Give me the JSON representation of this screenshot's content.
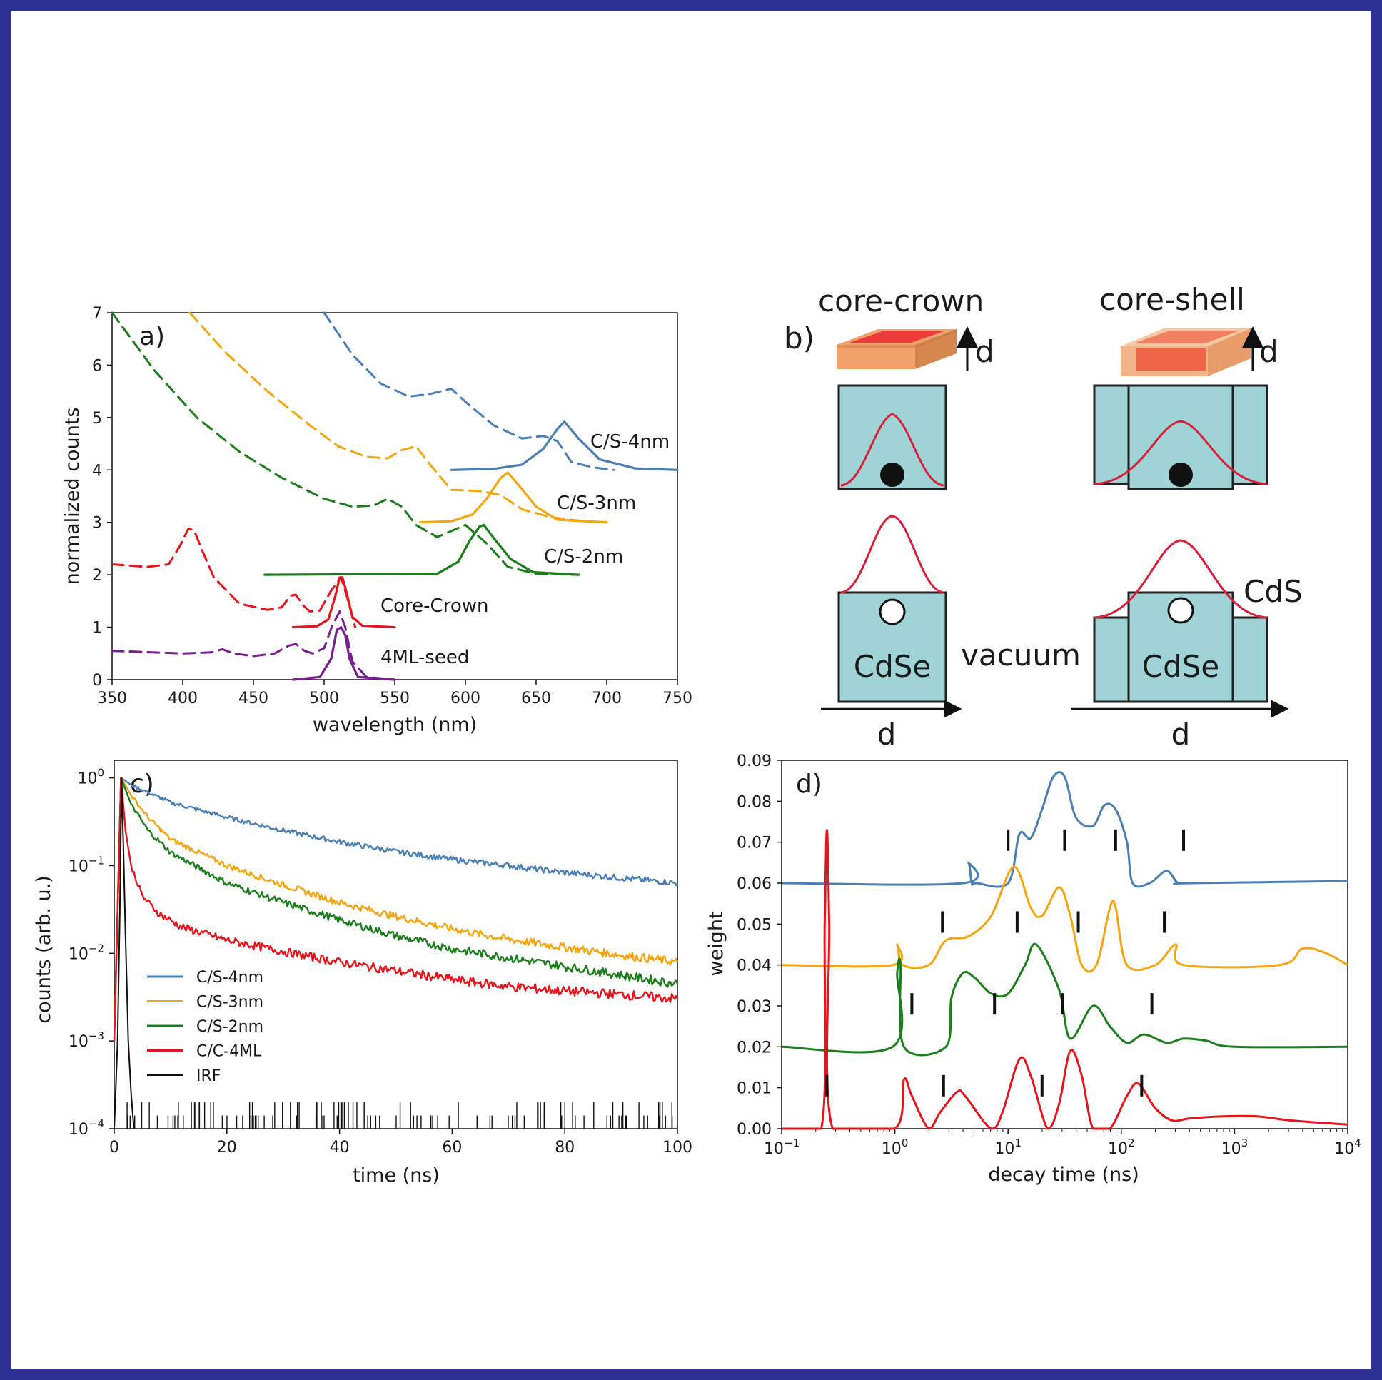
{
  "colors": {
    "frame": "#2e3192",
    "blue": "#4a7fb5",
    "orange": "#f4a50f",
    "green": "#1a7f1a",
    "red": "#e8141b",
    "purple": "#7a1f8f",
    "black": "#111111",
    "cdse": "#9fd3d6",
    "wave": "#d8203a",
    "chip_top": "#ec3b3b",
    "chip_rim": "#f0a26a"
  },
  "chart_data": [
    {
      "id": "a",
      "type": "line",
      "panel_label": "a)",
      "xlabel": "wavelength (nm)",
      "ylabel": "normalized counts",
      "xlim": [
        350,
        750
      ],
      "ylim": [
        0,
        7
      ],
      "xticks": [
        "350",
        "400",
        "450",
        "500",
        "550",
        "600",
        "650",
        "700",
        "750"
      ],
      "yticks": [
        "0",
        "1",
        "2",
        "3",
        "4",
        "5",
        "6",
        "7"
      ],
      "series": [
        {
          "name": "C/S-4nm",
          "color": "blue",
          "kind": "abs",
          "x": [
            500,
            520,
            540,
            560,
            575,
            590,
            600,
            620,
            640,
            655,
            665,
            675,
            690,
            705
          ],
          "y": [
            7.0,
            6.2,
            5.65,
            5.4,
            5.45,
            5.55,
            5.3,
            4.85,
            4.6,
            4.65,
            4.55,
            4.15,
            4.05,
            4.0
          ]
        },
        {
          "name": "C/S-4nm",
          "color": "blue",
          "kind": "pl",
          "label": "C/S-4nm",
          "x": [
            590,
            620,
            640,
            655,
            665,
            670,
            680,
            695,
            720,
            750
          ],
          "y": [
            4.0,
            4.02,
            4.1,
            4.4,
            4.78,
            4.92,
            4.6,
            4.2,
            4.03,
            4.0
          ]
        },
        {
          "name": "C/S-3nm",
          "color": "orange",
          "kind": "abs",
          "x": [
            405,
            430,
            460,
            490,
            510,
            530,
            545,
            555,
            565,
            575,
            590,
            610,
            625,
            640,
            660,
            690
          ],
          "y": [
            7.0,
            6.25,
            5.5,
            4.85,
            4.45,
            4.25,
            4.22,
            4.38,
            4.45,
            4.1,
            3.62,
            3.6,
            3.52,
            3.25,
            3.1,
            3.0
          ]
        },
        {
          "name": "C/S-3nm",
          "color": "orange",
          "kind": "pl",
          "label": "C/S-3nm",
          "x": [
            568,
            590,
            605,
            615,
            625,
            630,
            638,
            650,
            665,
            700
          ],
          "y": [
            3.0,
            3.02,
            3.15,
            3.45,
            3.85,
            3.95,
            3.7,
            3.3,
            3.05,
            3.0
          ]
        },
        {
          "name": "C/S-2nm",
          "color": "green",
          "kind": "abs",
          "x": [
            350,
            380,
            410,
            440,
            470,
            500,
            520,
            535,
            545,
            555,
            565,
            580,
            600,
            615,
            630,
            650,
            680
          ],
          "y": [
            7.0,
            5.9,
            5.0,
            4.35,
            3.85,
            3.45,
            3.3,
            3.32,
            3.45,
            3.3,
            2.95,
            2.72,
            2.95,
            2.6,
            2.15,
            2.02,
            2.0
          ]
        },
        {
          "name": "C/S-2nm",
          "color": "green",
          "kind": "pl",
          "label": "C/S-2nm",
          "x": [
            458,
            580,
            595,
            603,
            610,
            613,
            620,
            632,
            648,
            680
          ],
          "y": [
            2.0,
            2.02,
            2.25,
            2.65,
            2.92,
            2.95,
            2.7,
            2.3,
            2.05,
            2.0
          ]
        },
        {
          "name": "Core-Crown",
          "color": "red",
          "kind": "abs",
          "x": [
            350,
            375,
            390,
            398,
            404,
            408,
            414,
            422,
            440,
            460,
            470,
            476,
            480,
            485,
            490,
            497,
            505,
            512,
            516,
            522
          ],
          "y": [
            2.2,
            2.15,
            2.2,
            2.55,
            2.88,
            2.85,
            2.45,
            1.95,
            1.45,
            1.33,
            1.38,
            1.6,
            1.62,
            1.42,
            1.3,
            1.32,
            1.7,
            1.95,
            1.6,
            1.0
          ]
        },
        {
          "name": "Core-Crown",
          "color": "red",
          "kind": "pl",
          "label": "Core-Crown",
          "x": [
            478,
            495,
            503,
            508,
            511,
            513,
            516,
            520,
            527,
            550
          ],
          "y": [
            1.0,
            1.02,
            1.15,
            1.6,
            1.95,
            1.95,
            1.65,
            1.2,
            1.03,
            1.0
          ]
        },
        {
          "name": "4ML-seed",
          "color": "purple",
          "kind": "abs",
          "x": [
            350,
            400,
            420,
            428,
            436,
            450,
            465,
            475,
            480,
            486,
            492,
            500,
            506,
            511,
            515,
            520,
            530,
            550
          ],
          "y": [
            0.55,
            0.5,
            0.52,
            0.58,
            0.5,
            0.45,
            0.5,
            0.65,
            0.68,
            0.55,
            0.5,
            0.6,
            1.05,
            1.3,
            1.0,
            0.35,
            0.05,
            0.0
          ]
        },
        {
          "name": "4ML-seed",
          "color": "purple",
          "kind": "pl",
          "label": "4ML-seed",
          "x": [
            478,
            497,
            505,
            509,
            512,
            515,
            518,
            524,
            550
          ],
          "y": [
            0.0,
            0.05,
            0.4,
            0.95,
            1.0,
            0.85,
            0.4,
            0.05,
            0.0
          ]
        }
      ]
    },
    {
      "id": "c",
      "type": "line",
      "panel_label": "c)",
      "xlabel": "time (ns)",
      "ylabel": "counts (arb. u.)",
      "xlim": [
        0,
        100
      ],
      "ylim_log10": [
        -4,
        0.2
      ],
      "xticks": [
        "0",
        "20",
        "40",
        "60",
        "80",
        "100"
      ],
      "ytick_powers": [
        -4,
        -3,
        -2,
        -1,
        0
      ],
      "legend_position": "lower-left",
      "legend": [
        "C/S-4nm",
        "C/S-3nm",
        "C/S-2nm",
        "C/C-4ML",
        "IRF"
      ],
      "series": [
        {
          "name": "C/S-4nm",
          "color": "blue",
          "t": [
            0,
            1.2,
            3,
            10,
            20,
            30,
            40,
            50,
            60,
            70,
            80,
            90,
            100
          ],
          "log10": [
            -3,
            0,
            -0.08,
            -0.28,
            -0.45,
            -0.6,
            -0.73,
            -0.84,
            -0.93,
            -1.0,
            -1.08,
            -1.14,
            -1.2
          ]
        },
        {
          "name": "C/S-3nm",
          "color": "orange",
          "t": [
            0,
            1.2,
            3,
            6,
            10,
            20,
            30,
            40,
            50,
            60,
            70,
            80,
            90,
            100
          ],
          "log10": [
            -3,
            0,
            -0.2,
            -0.45,
            -0.7,
            -1.0,
            -1.22,
            -1.42,
            -1.58,
            -1.72,
            -1.84,
            -1.93,
            -2.02,
            -2.1
          ]
        },
        {
          "name": "C/S-2nm",
          "color": "green",
          "t": [
            0,
            1.2,
            3,
            6,
            10,
            20,
            30,
            40,
            50,
            60,
            70,
            80,
            90,
            100
          ],
          "log10": [
            -3,
            0,
            -0.3,
            -0.6,
            -0.85,
            -1.2,
            -1.42,
            -1.62,
            -1.8,
            -1.95,
            -2.05,
            -2.15,
            -2.25,
            -2.35
          ]
        },
        {
          "name": "C/C-4ML",
          "color": "red",
          "t": [
            0,
            1.2,
            2,
            3,
            5,
            8,
            12,
            20,
            30,
            40,
            50,
            60,
            70,
            80,
            90,
            100
          ],
          "log10": [
            -3,
            0,
            -0.6,
            -1.0,
            -1.35,
            -1.55,
            -1.7,
            -1.85,
            -1.98,
            -2.1,
            -2.2,
            -2.3,
            -2.38,
            -2.43,
            -2.47,
            -2.52
          ]
        },
        {
          "name": "IRF",
          "color": "black",
          "t": [
            0,
            0.6,
            1.0,
            1.3,
            1.6,
            2.0,
            2.5,
            3.0,
            3.5
          ],
          "log10": [
            -4,
            -3,
            -1.5,
            0,
            -0.7,
            -1.8,
            -3,
            -3.6,
            -4
          ]
        }
      ]
    },
    {
      "id": "d",
      "type": "line",
      "panel_label": "d)",
      "xlabel": "decay time (ns)",
      "ylabel": "weight",
      "xlim_log10": [
        -1,
        4
      ],
      "ylim": [
        0,
        0.09
      ],
      "yticks": [
        "0.00",
        "0.01",
        "0.02",
        "0.03",
        "0.04",
        "0.05",
        "0.06",
        "0.07",
        "0.08",
        "0.09"
      ],
      "xtick_powers": [
        -1,
        0,
        1,
        2,
        3,
        4
      ],
      "series": [
        {
          "name": "C/S-4nm",
          "color": "blue",
          "log10t": [
            -1,
            0.6,
            0.65,
            0.68,
            0.72,
            1.0,
            1.1,
            1.2,
            1.3,
            1.4,
            1.5,
            1.6,
            1.75,
            1.85,
            1.95,
            2.05,
            2.1,
            2.25,
            2.4,
            2.5,
            2.6,
            4.0
          ],
          "w": [
            0.06,
            0.06,
            0.065,
            0.06,
            0.06,
            0.06,
            0.072,
            0.071,
            0.078,
            0.086,
            0.086,
            0.076,
            0.074,
            0.079,
            0.078,
            0.07,
            0.06,
            0.06,
            0.063,
            0.06,
            0.06,
            0.0605
          ],
          "ticks": [
            1.0,
            1.5,
            1.95,
            2.55
          ]
        },
        {
          "name": "C/S-3nm",
          "color": "orange",
          "log10t": [
            -1,
            -0.02,
            0.02,
            0.07,
            0.3,
            0.45,
            0.65,
            0.85,
            1.05,
            1.2,
            1.3,
            1.45,
            1.55,
            1.65,
            1.78,
            1.9,
            1.95,
            2.05,
            2.3,
            2.48,
            2.55,
            3.4,
            3.6,
            3.8,
            4.0
          ],
          "w": [
            0.04,
            0.04,
            0.045,
            0.04,
            0.04,
            0.046,
            0.047,
            0.052,
            0.064,
            0.054,
            0.052,
            0.059,
            0.052,
            0.04,
            0.04,
            0.054,
            0.054,
            0.04,
            0.04,
            0.045,
            0.04,
            0.04,
            0.044,
            0.043,
            0.04
          ],
          "ticks": [
            0.42,
            1.08,
            1.62,
            2.38
          ]
        },
        {
          "name": "C/S-2nm",
          "color": "green",
          "log10t": [
            -1,
            -0.02,
            0.02,
            0.05,
            0.08,
            0.45,
            0.5,
            0.6,
            0.7,
            0.85,
            1.0,
            1.15,
            1.25,
            1.45,
            1.55,
            1.75,
            1.9,
            2.05,
            2.2,
            2.4,
            2.55,
            2.75,
            3.0,
            4.0
          ],
          "w": [
            0.02,
            0.02,
            0.038,
            0.04,
            0.02,
            0.02,
            0.032,
            0.038,
            0.037,
            0.033,
            0.033,
            0.04,
            0.045,
            0.034,
            0.022,
            0.03,
            0.025,
            0.021,
            0.023,
            0.021,
            0.022,
            0.0215,
            0.02,
            0.02
          ],
          "ticks": [
            0.15,
            0.88,
            1.48,
            2.27
          ]
        },
        {
          "name": "C/C-4ML",
          "color": "red",
          "log10t": [
            -1,
            -0.65,
            -0.62,
            -0.6,
            -0.58,
            -0.55,
            0,
            0.08,
            0.15,
            0.3,
            0.4,
            0.55,
            0.62,
            0.85,
            0.95,
            1.1,
            1.2,
            1.35,
            1.45,
            1.55,
            1.65,
            1.75,
            1.9,
            2.05,
            2.15,
            2.3,
            2.45,
            2.6,
            2.9,
            3.2,
            3.5,
            4.0
          ],
          "w": [
            0.0,
            0.0,
            0.05,
            0.073,
            0.05,
            0.0,
            0.0,
            0.012,
            0.008,
            0.0,
            0.004,
            0.009,
            0.008,
            0.0,
            0.004,
            0.017,
            0.013,
            0.0,
            0.006,
            0.019,
            0.013,
            0.0,
            0.0,
            0.008,
            0.011,
            0.005,
            0.002,
            0.0025,
            0.003,
            0.003,
            0.002,
            0.001
          ],
          "ticks": [
            -0.6,
            0.43,
            1.3,
            2.18
          ]
        }
      ]
    }
  ],
  "diagram_b": {
    "panel_label": "b)",
    "left_title": "core-crown",
    "right_title": "core-shell",
    "thickness_label": "d",
    "vacuum_label": "vacuum",
    "core_label": "CdSe",
    "shell_label": "CdS",
    "axis_label": "d"
  }
}
